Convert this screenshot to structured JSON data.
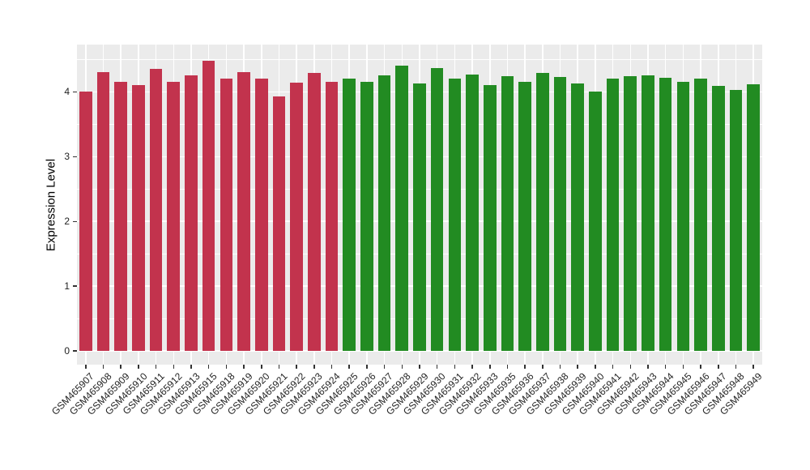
{
  "chart_data": {
    "type": "bar",
    "title": "",
    "xlabel": "",
    "ylabel": "Expression Level",
    "ylim": [
      -0.21,
      4.73
    ],
    "yticks": [
      0,
      1,
      2,
      3,
      4
    ],
    "y_minor_ticks": [
      0.5,
      1.5,
      2.5,
      3.5,
      4.5
    ],
    "grid": "on",
    "legend_position": "none",
    "categories": [
      "GSM465907",
      "GSM465908",
      "GSM465909",
      "GSM465910",
      "GSM465911",
      "GSM465912",
      "GSM465913",
      "GSM465915",
      "GSM465918",
      "GSM465919",
      "GSM465920",
      "GSM465921",
      "GSM465922",
      "GSM465923",
      "GSM465924",
      "GSM465925",
      "GSM465926",
      "GSM465927",
      "GSM465928",
      "GSM465929",
      "GSM465930",
      "GSM465931",
      "GSM465932",
      "GSM465933",
      "GSM465935",
      "GSM465936",
      "GSM465937",
      "GSM465938",
      "GSM465939",
      "GSM465940",
      "GSM465941",
      "GSM465942",
      "GSM465943",
      "GSM465944",
      "GSM465945",
      "GSM465946",
      "GSM465947",
      "GSM465948",
      "GSM465949"
    ],
    "values": [
      4.01,
      4.3,
      4.16,
      4.11,
      4.35,
      4.15,
      4.25,
      4.48,
      4.2,
      4.31,
      4.21,
      3.93,
      4.14,
      4.29,
      4.16,
      4.2,
      4.15,
      4.25,
      4.41,
      4.13,
      4.37,
      4.2,
      4.27,
      4.1,
      4.24,
      4.16,
      4.29,
      4.23,
      4.13,
      4.0,
      4.2,
      4.24,
      4.25,
      4.22,
      4.16,
      4.2,
      4.09,
      4.03,
      4.12
    ],
    "bar_groups": [
      0,
      0,
      0,
      0,
      0,
      0,
      0,
      0,
      0,
      0,
      0,
      0,
      0,
      0,
      0,
      1,
      1,
      1,
      1,
      1,
      1,
      1,
      1,
      1,
      1,
      1,
      1,
      1,
      1,
      1,
      1,
      1,
      1,
      1,
      1,
      1,
      1,
      1,
      1
    ],
    "group_colors": [
      "#C2334D",
      "#228B22"
    ],
    "colors": {
      "panel_background": "#EBEBEB",
      "gridline": "#FFFFFF",
      "page_background": "#FFFFFF",
      "axis_text": "#1F1F1F",
      "axis_title": "#000000"
    }
  }
}
